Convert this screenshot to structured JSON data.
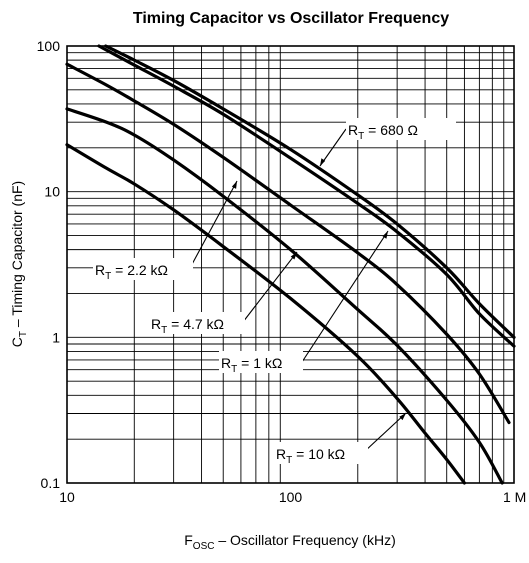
{
  "chart_data": {
    "type": "line",
    "title": "Timing Capacitor vs Oscillator Frequency",
    "xlabel": {
      "main": "F",
      "sub": "OSC",
      "rest": " – Oscillator Frequency (kHz)"
    },
    "ylabel": {
      "main": "C",
      "sub": "T",
      "rest": " – Timing Capacitor (nF)"
    },
    "x_scale": "log",
    "y_scale": "log",
    "xlim": [
      10,
      1000
    ],
    "ylim": [
      0.1,
      100
    ],
    "x_ticks": [
      {
        "v": 10,
        "label": "10"
      },
      {
        "v": 100,
        "label": "100"
      },
      {
        "v": 1000,
        "label": "1 M"
      }
    ],
    "y_ticks": [
      {
        "v": 100,
        "label": "100"
      },
      {
        "v": 10,
        "label": "10"
      },
      {
        "v": 1,
        "label": "1"
      },
      {
        "v": 0.1,
        "label": "0.1"
      }
    ],
    "grid": true,
    "series": [
      {
        "key": "r680",
        "label": {
          "pre": "R",
          "sub": "T",
          "post": " = 680 Ω"
        },
        "x": [
          14.9,
          20,
          30,
          50,
          100,
          200,
          300,
          500,
          700,
          1000
        ],
        "y": [
          100,
          80,
          58,
          37,
          19.5,
          9.5,
          6,
          3,
          1.7,
          1.0
        ],
        "label_x": 118,
        "label_y": 15
      },
      {
        "key": "r1k",
        "label": {
          "pre": "R",
          "sub": "T",
          "post": " = 1 kΩ"
        },
        "x": [
          13.9,
          20,
          30,
          50,
          100,
          200,
          300,
          500,
          700,
          1000
        ],
        "y": [
          100,
          74,
          53,
          34,
          17,
          8.3,
          5.3,
          2.7,
          1.45,
          0.87
        ],
        "label_x": 270,
        "label_y": 5.8
      },
      {
        "key": "r2k2",
        "label": {
          "pre": "R",
          "sub": "T",
          "post": " = 2.2 kΩ"
        },
        "x": [
          10,
          15,
          20,
          30,
          50,
          100,
          200,
          300,
          500,
          700,
          950
        ],
        "y": [
          75,
          54,
          42,
          29,
          17.2,
          8.1,
          3.8,
          2.3,
          1.05,
          0.56,
          0.26
        ],
        "label_x": 76,
        "label_y": 13
      },
      {
        "key": "r4k7",
        "label": {
          "pre": "R",
          "sub": "T",
          "post": " = 4.7 kΩ"
        },
        "x": [
          10,
          15,
          20,
          30,
          50,
          100,
          200,
          300,
          500,
          700,
          885
        ],
        "y": [
          37,
          30,
          24.5,
          16.5,
          9.3,
          4,
          1.55,
          0.88,
          0.37,
          0.19,
          0.1
        ],
        "label_x": 105,
        "label_y": 4.2
      },
      {
        "key": "r10k",
        "label": {
          "pre": "R",
          "sub": "T",
          "post": " = 10 kΩ"
        },
        "x": [
          10,
          15,
          20,
          30,
          50,
          100,
          200,
          300,
          400,
          500,
          600
        ],
        "y": [
          21,
          14.5,
          11.3,
          7.5,
          4.2,
          1.85,
          0.74,
          0.38,
          0.22,
          0.145,
          0.1
        ],
        "label_x": 335,
        "label_y": 0.34
      }
    ]
  }
}
